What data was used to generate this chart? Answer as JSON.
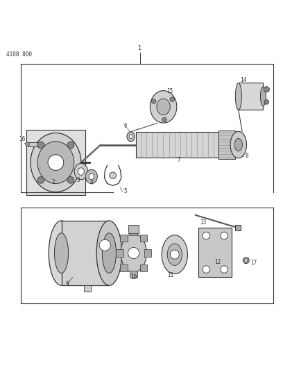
{
  "title": "4108 800",
  "bg_color": "#ffffff",
  "line_color": "#333333",
  "fig_width": 4.08,
  "fig_height": 5.33,
  "dpi": 100
}
